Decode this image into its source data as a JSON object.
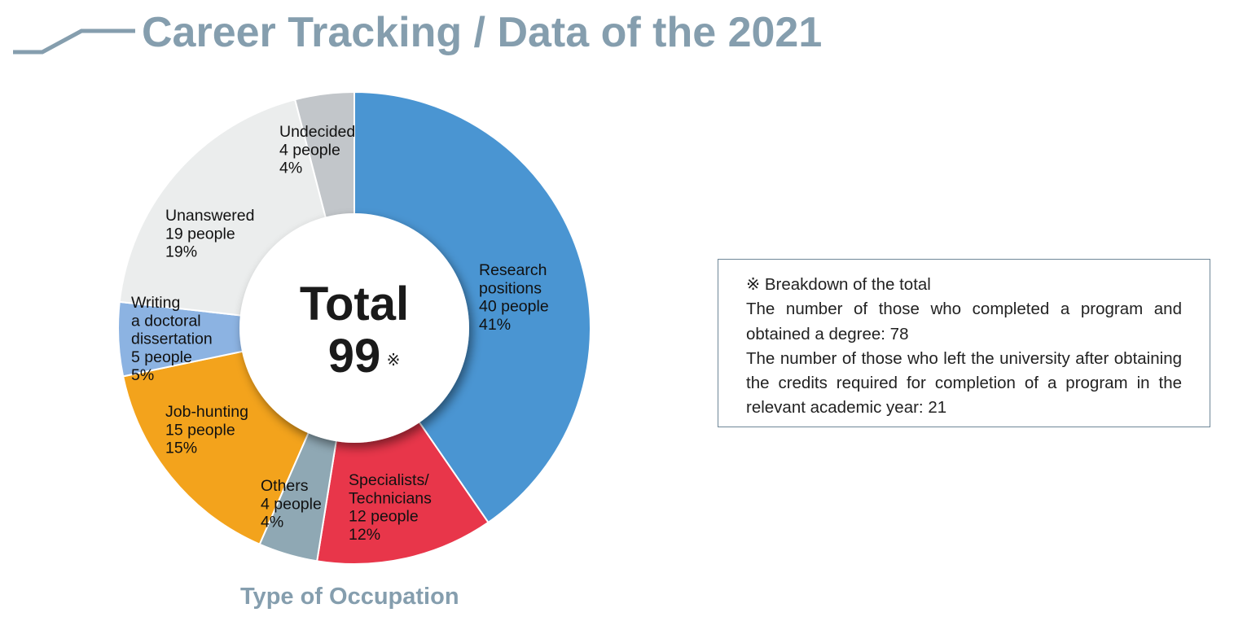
{
  "header": {
    "title": "Career Tracking / Data of the 2021"
  },
  "chart_data": {
    "type": "pie",
    "variant": "donut",
    "categories": [
      "Research positions",
      "Specialists/ Technicians",
      "Others",
      "Job-hunting",
      "Writing a doctoral dissertation",
      "Unanswered",
      "Undecided"
    ],
    "values": [
      40,
      12,
      4,
      15,
      5,
      19,
      4
    ],
    "percentages": [
      41,
      12,
      4,
      15,
      5,
      19,
      4
    ],
    "slices": [
      {
        "label_lines": [
          "Research",
          "positions"
        ],
        "count_text": "40 people",
        "percent_text": "41%",
        "value": 40,
        "color": "#4a95d2"
      },
      {
        "label_lines": [
          "Specialists/",
          "Technicians"
        ],
        "count_text": "12 people",
        "percent_text": "12%",
        "value": 12,
        "color": "#e8364a"
      },
      {
        "label_lines": [
          "Others"
        ],
        "count_text": "4 people",
        "percent_text": "4%",
        "value": 4,
        "color": "#8fa8b4"
      },
      {
        "label_lines": [
          "Job-hunting"
        ],
        "count_text": "15 people",
        "percent_text": "15%",
        "value": 15,
        "color": "#f3a31c"
      },
      {
        "label_lines": [
          "Writing",
          "a doctoral",
          "dissertation"
        ],
        "count_text": "5 people",
        "percent_text": "5%",
        "value": 5,
        "color": "#8cb3e2"
      },
      {
        "label_lines": [
          "Unanswered"
        ],
        "count_text": "19 people",
        "percent_text": "19%",
        "value": 19,
        "color": "#ebeded"
      },
      {
        "label_lines": [
          "Undecided"
        ],
        "count_text": "4 people",
        "percent_text": "4%",
        "value": 4,
        "color": "#c2c6ca"
      }
    ],
    "center": {
      "label": "Total",
      "value": "99",
      "mark": "※"
    },
    "caption": "Type of Occupation"
  },
  "note": {
    "heading": "※ Breakdown of the total",
    "line1": "The number of those who completed a program and obtained a degree: 78",
    "line2": "The number of those who left the university after obtaining the credits required for completion of a program in the relevant academic year: 21"
  }
}
